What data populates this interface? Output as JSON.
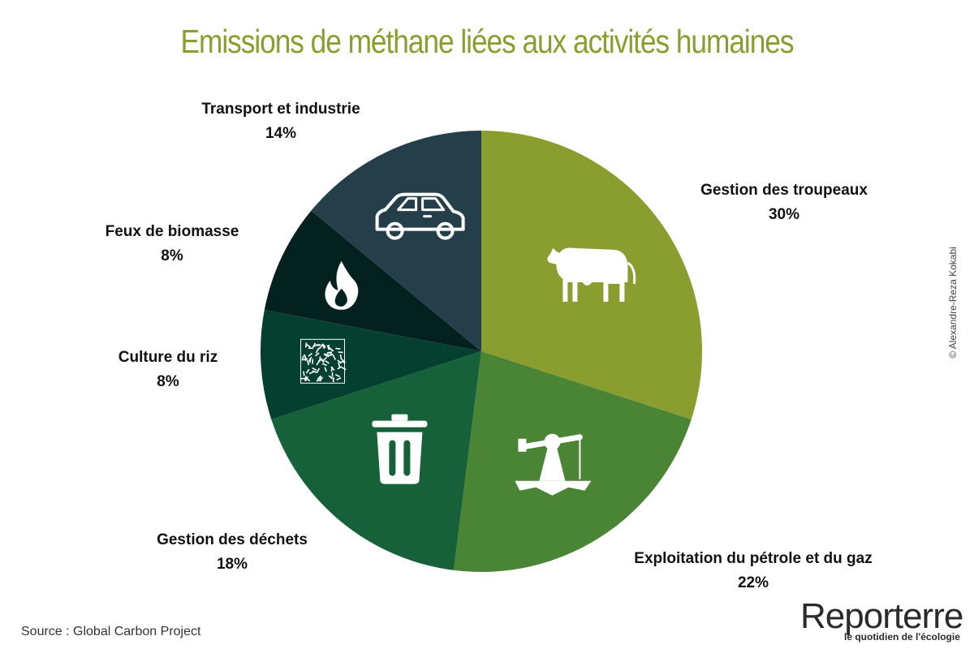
{
  "colors": {
    "title": "#8a9e2f",
    "text": "#111111",
    "slices": [
      "#8a9e2f",
      "#4a8435",
      "#16613a",
      "#053f30",
      "#03221f",
      "#243f4a"
    ],
    "icon": "#ffffff",
    "logo_accent": "#8a9e2f"
  },
  "chart_data": {
    "type": "pie",
    "title": "Emissions de méthane liées aux activités humaines",
    "start_angle_deg": 0,
    "direction": "clockwise",
    "slices": [
      {
        "label": "Gestion des troupeaux",
        "value": 30,
        "value_label": "30%",
        "icon": "cow-icon"
      },
      {
        "label": "Exploitation du pétrole et du gaz",
        "value": 22,
        "value_label": "22%",
        "icon": "oil-pump-icon"
      },
      {
        "label": "Gestion des déchets",
        "value": 18,
        "value_label": "18%",
        "icon": "trash-icon"
      },
      {
        "label": "Culture du riz",
        "value": 8,
        "value_label": "8%",
        "icon": "rice-icon"
      },
      {
        "label": "Feux de biomasse",
        "value": 8,
        "value_label": "8%",
        "icon": "flame-icon"
      },
      {
        "label": "Transport et industrie",
        "value": 14,
        "value_label": "14%",
        "icon": "car-icon"
      }
    ]
  },
  "source": "Source : Global Carbon Project",
  "credit": "© Alexandre-Reza Kokabi",
  "logo": {
    "name": "Reporterre",
    "tagline": "le quotidien de l'écologie"
  }
}
